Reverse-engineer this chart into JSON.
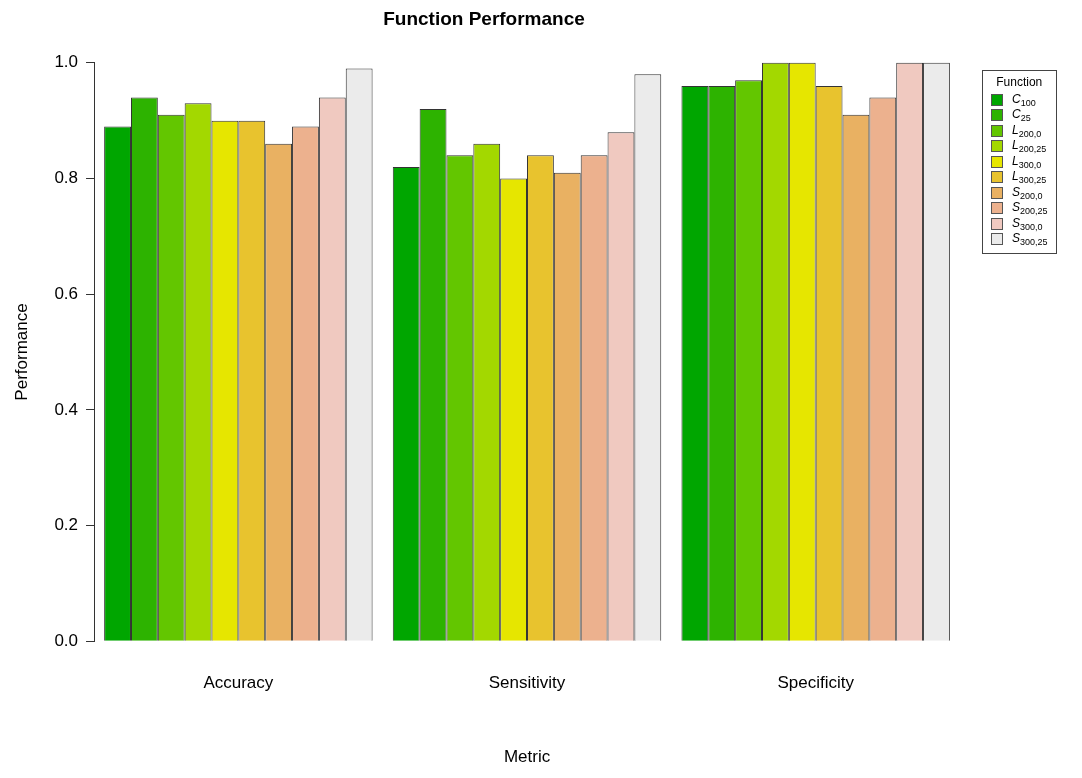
{
  "chart_data": {
    "type": "bar",
    "title": "Function Performance",
    "xlabel": "Metric",
    "ylabel": "Performance",
    "legend_title": "Function",
    "categories": [
      "Accuracy",
      "Sensitivity",
      "Specificity"
    ],
    "series": [
      {
        "name": "C$_{100}$",
        "color": "#00a600",
        "values": [
          0.89,
          0.82,
          0.96
        ]
      },
      {
        "name": "C$_{25}$",
        "color": "#2db300",
        "values": [
          0.94,
          0.92,
          0.96
        ]
      },
      {
        "name": "L$_{200,0}$",
        "color": "#63c600",
        "values": [
          0.91,
          0.84,
          0.97
        ]
      },
      {
        "name": "L$_{200,25}$",
        "color": "#a3d800",
        "values": [
          0.93,
          0.86,
          1.0
        ]
      },
      {
        "name": "L$_{300,0}$",
        "color": "#e6e600",
        "values": [
          0.9,
          0.8,
          1.0
        ]
      },
      {
        "name": "L$_{300,25}$",
        "color": "#e8c32e",
        "values": [
          0.9,
          0.84,
          0.96
        ]
      },
      {
        "name": "S$_{200,0}$",
        "color": "#e9b162",
        "values": [
          0.86,
          0.81,
          0.91
        ]
      },
      {
        "name": "S$_{200,25}$",
        "color": "#ecb18e",
        "values": [
          0.89,
          0.84,
          0.94
        ]
      },
      {
        "name": "S$_{300,0}$",
        "color": "#f0c9c0",
        "values": [
          0.94,
          0.88,
          1.0
        ]
      },
      {
        "name": "S$_{300,25}$",
        "color": "#ebebeb",
        "values": [
          0.99,
          0.98,
          1.0
        ]
      }
    ],
    "ylim": [
      0,
      1
    ],
    "yticks": [
      {
        "value": 0,
        "label": "0.0"
      },
      {
        "value": 0.2,
        "label": "0.2"
      },
      {
        "value": 0.4,
        "label": "0.4"
      },
      {
        "value": 0.6,
        "label": "0.6"
      },
      {
        "value": 0.8,
        "label": "0.8"
      },
      {
        "value": 1,
        "label": "1.0"
      }
    ],
    "grid": false,
    "legend": "top right"
  }
}
